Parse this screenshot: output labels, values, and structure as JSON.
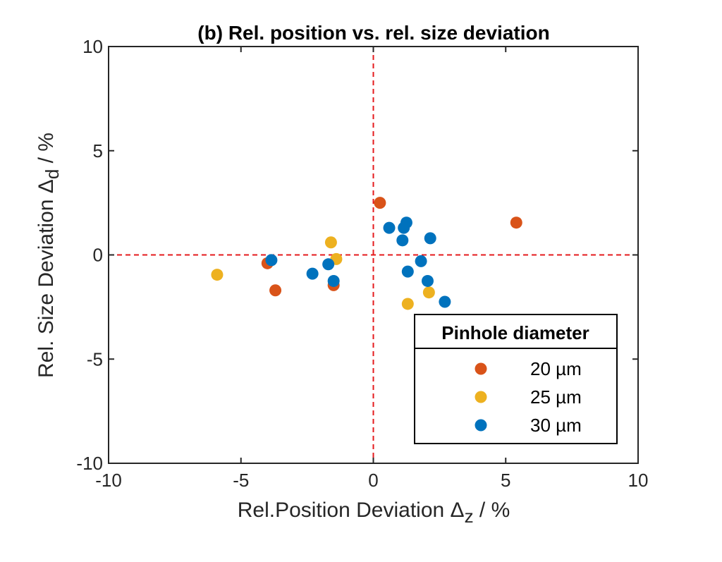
{
  "chart_data": {
    "type": "scatter",
    "title": "(b) Rel. position vs. rel. size deviation",
    "xlabel": {
      "main": "Rel.Position Deviation Δ",
      "sub": "z",
      "suffix": " / %"
    },
    "ylabel": {
      "main": "Rel. Size Deviation Δ",
      "sub": "d",
      "suffix": " / %"
    },
    "xlim": [
      -10,
      10
    ],
    "ylim": [
      -10,
      10
    ],
    "xticks": [
      -10,
      -5,
      0,
      5,
      10
    ],
    "yticks": [
      -10,
      -5,
      0,
      5,
      10
    ],
    "reference_lines": {
      "x": 0,
      "y": 0,
      "color": "#e41a1c",
      "style": "dashed"
    },
    "legend": {
      "title": "Pinhole diameter",
      "location": "bottom-right"
    },
    "series": [
      {
        "name": "20 µm",
        "color": "#d95319",
        "points": [
          [
            0.25,
            2.5
          ],
          [
            5.4,
            1.55
          ],
          [
            -4.0,
            -0.4
          ],
          [
            -3.7,
            -1.7
          ],
          [
            -1.5,
            -1.45
          ]
        ]
      },
      {
        "name": "25 µm",
        "color": "#edb120",
        "points": [
          [
            -1.6,
            0.6
          ],
          [
            -1.4,
            -0.2
          ],
          [
            -5.9,
            -0.95
          ],
          [
            2.1,
            -1.8
          ],
          [
            1.3,
            -2.35
          ]
        ]
      },
      {
        "name": "30 µm",
        "color": "#0072bd",
        "points": [
          [
            1.25,
            1.55
          ],
          [
            1.15,
            1.3
          ],
          [
            0.6,
            1.3
          ],
          [
            1.1,
            0.7
          ],
          [
            2.15,
            0.8
          ],
          [
            -3.85,
            -0.25
          ],
          [
            -1.7,
            -0.45
          ],
          [
            1.8,
            -0.3
          ],
          [
            -2.3,
            -0.9
          ],
          [
            1.3,
            -0.8
          ],
          [
            -1.5,
            -1.25
          ],
          [
            2.05,
            -1.25
          ],
          [
            2.7,
            -2.25
          ]
        ]
      }
    ]
  }
}
